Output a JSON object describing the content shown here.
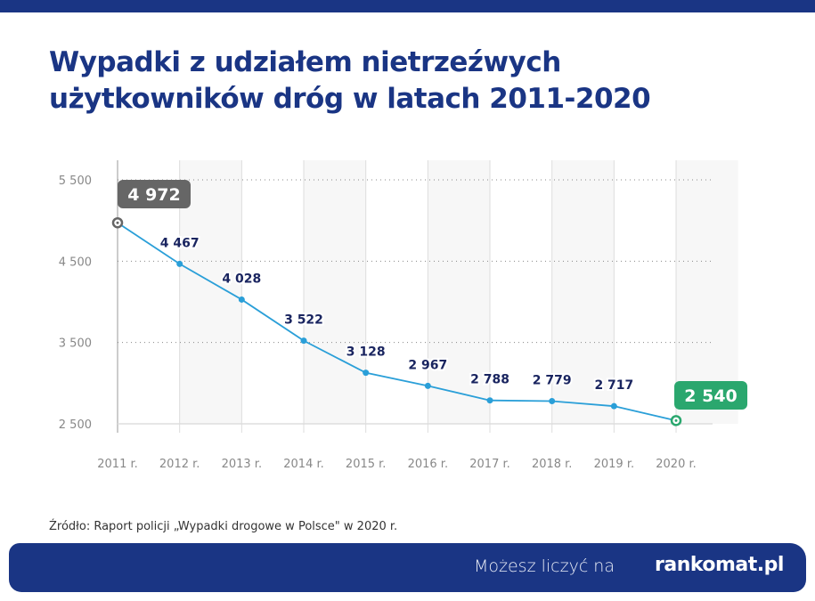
{
  "title": "Wypadki z udziałem nietrzeźwych użytkowników dróg w latach 2011-2020",
  "source": "Źródło: Raport policji „Wypadki drogowe w Polsce\" w 2020 r.",
  "footer": {
    "slogan": "Możesz liczyć na",
    "logo": "rankomat.pl"
  },
  "colors": {
    "brand": "#1a3584",
    "line": "#2a9fd8",
    "first_highlight": "#666666",
    "last_highlight": "#2aa76e",
    "label": "#1a2560"
  },
  "chart_data": {
    "type": "line",
    "title": "Wypadki z udziałem nietrzeźwych użytkowników dróg w latach 2011-2020",
    "categories": [
      "2011 r.",
      "2012 r.",
      "2013 r.",
      "2014 r.",
      "2015 r.",
      "2016 r.",
      "2017 r.",
      "2018 r.",
      "2019 r.",
      "2020 r."
    ],
    "values": [
      4972,
      4467,
      4028,
      3522,
      3128,
      2967,
      2788,
      2779,
      2717,
      2540
    ],
    "value_labels": [
      "4 972",
      "4 467",
      "4 028",
      "3 522",
      "3 128",
      "2 967",
      "2 788",
      "2 779",
      "2 717",
      "2 540"
    ],
    "yticks": [
      2500,
      3500,
      4500,
      5500
    ],
    "ytick_labels": [
      "2 500",
      "3 500",
      "4 500",
      "5 500"
    ],
    "ylim": [
      2500,
      5500
    ],
    "grid": true,
    "legend": "none"
  }
}
